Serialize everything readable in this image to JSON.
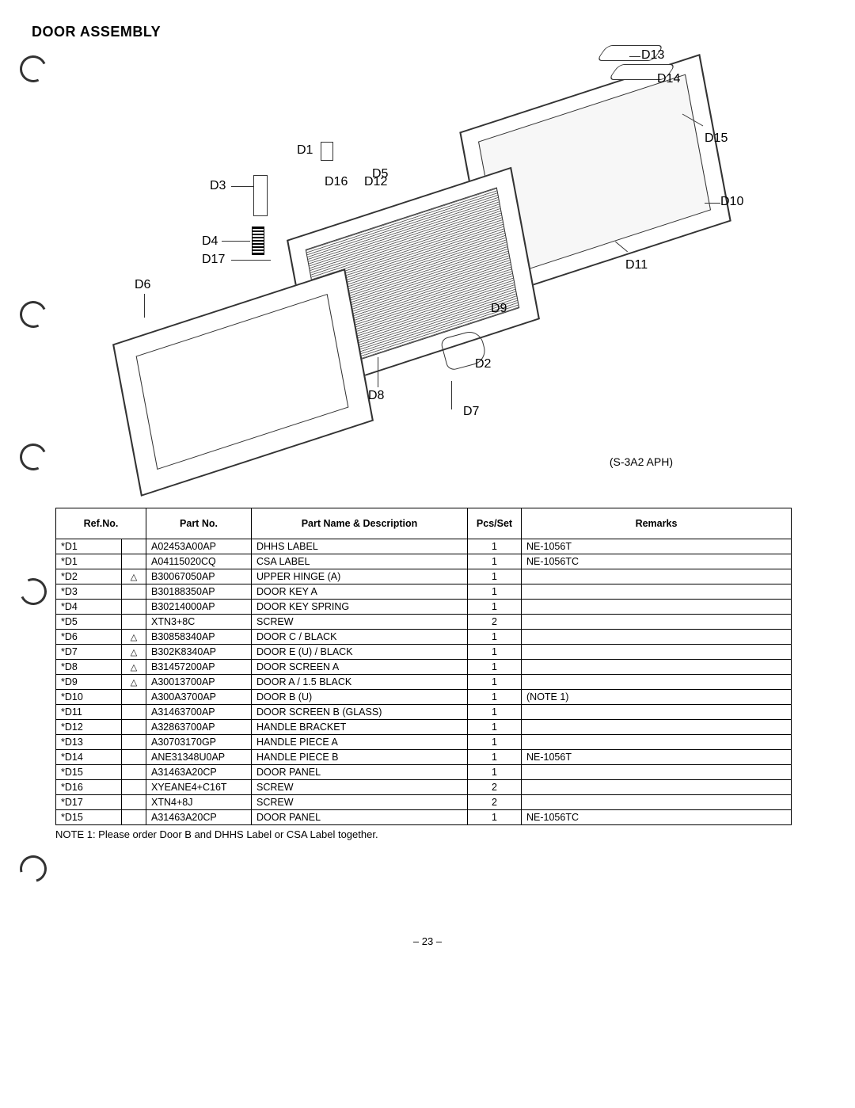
{
  "title": "DOOR ASSEMBLY",
  "drawing_code": "(S-3A2 APH)",
  "diagram_labels": {
    "D1": "D1",
    "D2": "D2",
    "D3": "D3",
    "D4": "D4",
    "D5": "D5",
    "D6": "D6",
    "D7": "D7",
    "D8": "D8",
    "D9": "D9",
    "D10": "D10",
    "D11": "D11",
    "D12": "D12",
    "D13": "D13",
    "D14": "D14",
    "D15": "D15",
    "D16": "D16",
    "D17": "D17"
  },
  "table": {
    "headers": {
      "ref": "Ref.No.",
      "part": "Part No.",
      "desc": "Part Name & Description",
      "pcs": "Pcs/Set",
      "rem": "Remarks"
    },
    "rows": [
      {
        "ref": "*D1",
        "mark": "",
        "part": "A02453A00AP",
        "desc": "DHHS LABEL",
        "pcs": "1",
        "rem": "NE-1056T"
      },
      {
        "ref": "*D1",
        "mark": "",
        "part": "A04115020CQ",
        "desc": "CSA LABEL",
        "pcs": "1",
        "rem": "NE-1056TC"
      },
      {
        "ref": "*D2",
        "mark": "△",
        "part": "B30067050AP",
        "desc": "UPPER HINGE (A)",
        "pcs": "1",
        "rem": ""
      },
      {
        "ref": "*D3",
        "mark": "",
        "part": "B30188350AP",
        "desc": "DOOR KEY A",
        "pcs": "1",
        "rem": ""
      },
      {
        "ref": "*D4",
        "mark": "",
        "part": "B30214000AP",
        "desc": "DOOR KEY SPRING",
        "pcs": "1",
        "rem": ""
      },
      {
        "ref": "*D5",
        "mark": "",
        "part": "XTN3+8C",
        "desc": "SCREW",
        "pcs": "2",
        "rem": ""
      },
      {
        "ref": "*D6",
        "mark": "△",
        "part": "B30858340AP",
        "desc": "DOOR C / BLACK",
        "pcs": "1",
        "rem": ""
      },
      {
        "ref": "*D7",
        "mark": "△",
        "part": "B302K8340AP",
        "desc": "DOOR E (U) / BLACK",
        "pcs": "1",
        "rem": ""
      },
      {
        "ref": "*D8",
        "mark": "△",
        "part": "B31457200AP",
        "desc": "DOOR SCREEN A",
        "pcs": "1",
        "rem": ""
      },
      {
        "ref": "*D9",
        "mark": "△",
        "part": "A30013700AP",
        "desc": "DOOR A / 1.5 BLACK",
        "pcs": "1",
        "rem": ""
      },
      {
        "ref": "*D10",
        "mark": "",
        "part": "A300A3700AP",
        "desc": "DOOR B (U)",
        "pcs": "1",
        "rem": "(NOTE 1)"
      },
      {
        "ref": "*D11",
        "mark": "",
        "part": "A31463700AP",
        "desc": "DOOR SCREEN B (GLASS)",
        "pcs": "1",
        "rem": ""
      },
      {
        "ref": "*D12",
        "mark": "",
        "part": "A32863700AP",
        "desc": "HANDLE BRACKET",
        "pcs": "1",
        "rem": ""
      },
      {
        "ref": "*D13",
        "mark": "",
        "part": "A30703170GP",
        "desc": "HANDLE PIECE A",
        "pcs": "1",
        "rem": ""
      },
      {
        "ref": "*D14",
        "mark": "",
        "part": "ANE31348U0AP",
        "desc": "HANDLE PIECE B",
        "pcs": "1",
        "rem": "NE-1056T"
      },
      {
        "ref": "*D15",
        "mark": "",
        "part": "A31463A20CP",
        "desc": "DOOR PANEL",
        "pcs": "1",
        "rem": ""
      },
      {
        "ref": "*D16",
        "mark": "",
        "part": "XYEANE4+C16T",
        "desc": "SCREW",
        "pcs": "2",
        "rem": ""
      },
      {
        "ref": "*D17",
        "mark": "",
        "part": "XTN4+8J",
        "desc": "SCREW",
        "pcs": "2",
        "rem": ""
      },
      {
        "ref": "*D15",
        "mark": "",
        "part": "A31463A20CP",
        "desc": "DOOR PANEL",
        "pcs": "1",
        "rem": "NE-1056TC"
      }
    ]
  },
  "note": "NOTE 1: Please order Door B and DHHS Label or CSA Label together.",
  "page_number": "– 23 –"
}
